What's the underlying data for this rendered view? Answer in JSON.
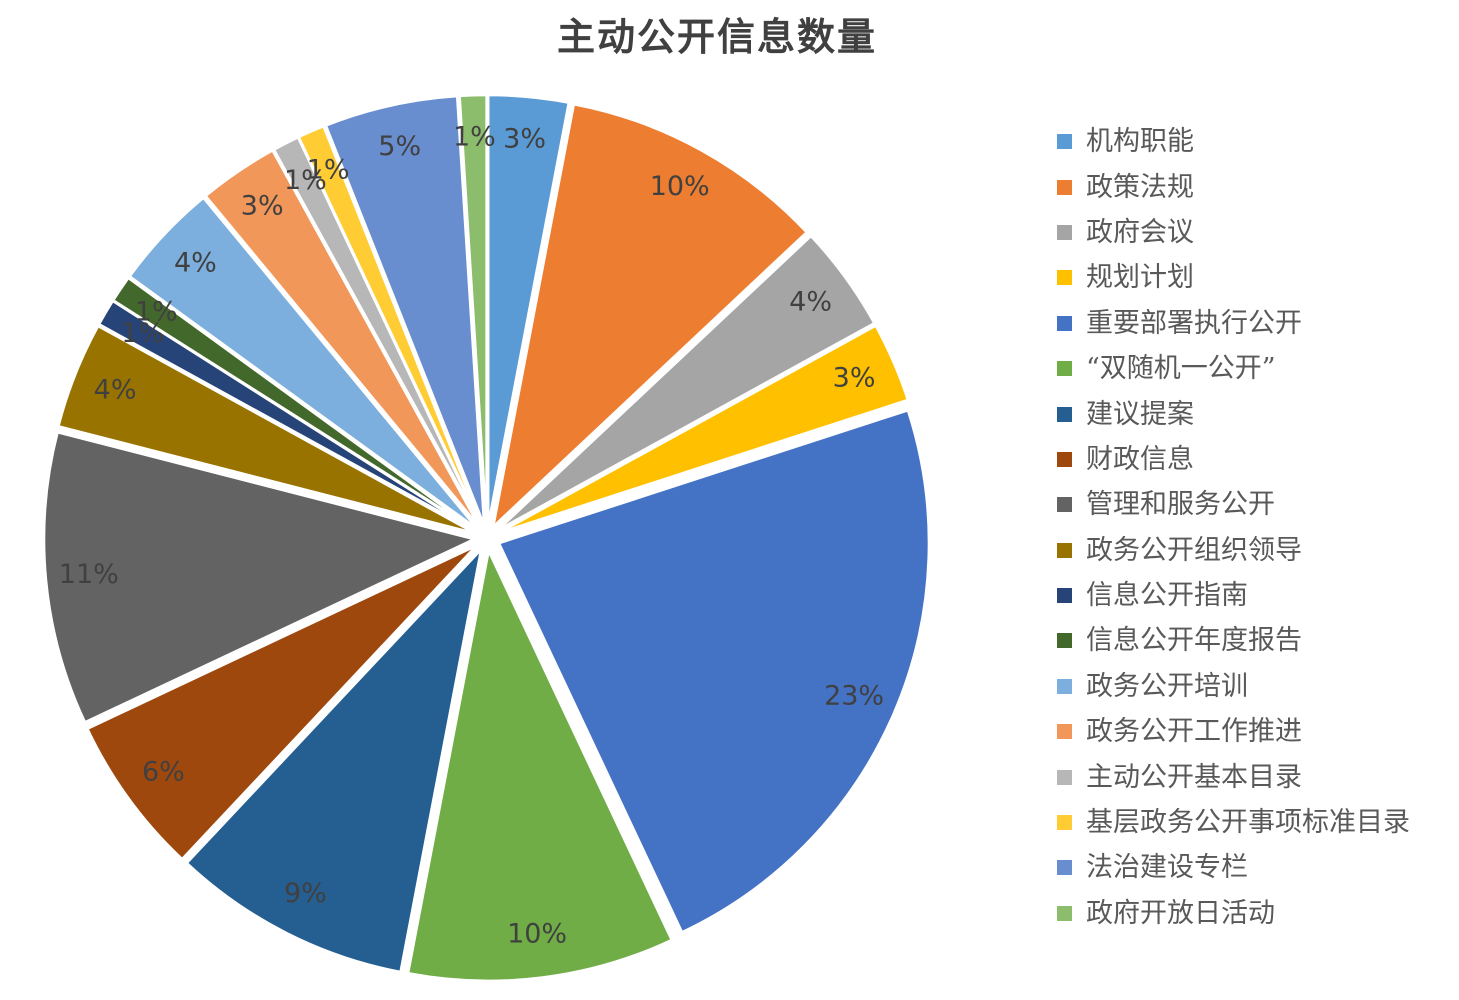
{
  "chart_data": {
    "type": "pie",
    "title": "主动公开信息数量",
    "legend_position": "right",
    "style": "exploded",
    "direction": "clockwise",
    "start_angle_deg": 0,
    "label_suffix": "%",
    "label_color": "#404040",
    "title_color": "#404040",
    "legend_text_color": "#595959",
    "background_color": "#ffffff",
    "categories": [
      "机构职能",
      "政策法规",
      "政府会议",
      "规划计划",
      "重要部署执行公开",
      "“双随机一公开”",
      "建议提案",
      "财政信息",
      "管理和服务公开",
      "政务公开组织领导",
      "信息公开指南",
      "信息公开年度报告",
      "政务公开培训",
      "政务公开工作推进",
      "主动公开基本目录",
      "基层政务公开事项标准目录",
      "法治建设专栏",
      "政府开放日活动"
    ],
    "values": [
      3,
      10,
      4,
      3,
      23,
      10,
      9,
      6,
      11,
      4,
      1,
      1,
      4,
      3,
      1,
      1,
      5,
      1
    ],
    "colors": [
      "#5B9BD5",
      "#ED7D31",
      "#A5A5A5",
      "#FFC000",
      "#4472C4",
      "#70AD47",
      "#255E91",
      "#9E480E",
      "#636363",
      "#997300",
      "#264478",
      "#43682B",
      "#7CAFDD",
      "#F1975A",
      "#B7B7B7",
      "#FFCC33",
      "#698ED0",
      "#8CBD6C"
    ]
  }
}
